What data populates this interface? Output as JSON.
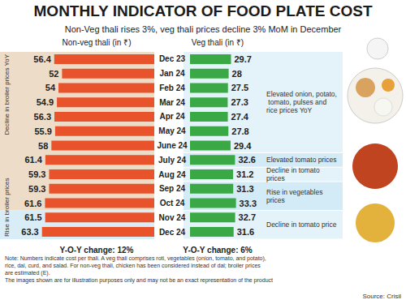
{
  "title": "MONTHLY INDICATOR OF FOOD PLATE COST",
  "subtitle": "Non-Veg thali rises 3%, veg thali prices decline 3% MoM in December",
  "note": [
    "Note: Numbers indicate cost per thali. A veg thali comprises roti, vegetables (onion, tomato, and potato), rice, dal, curd, and salad. For non-veg thali, chicken has been considered instead of dal; broiler prices are estimated (E).",
    "The images shown are for illustration purposes only and may not be an exact representation of the product"
  ],
  "source": "Source: Crisil",
  "chart_data": [
    {
      "type": "bar",
      "orientation": "horizontal",
      "title": "Non-veg thali (in ₹)",
      "categories": [
        "Dec 23",
        "Jan 24",
        "Feb 24",
        "Mar 24",
        "Apr 24",
        "May 24",
        "June 24",
        "July 24",
        "Aug 24",
        "Sep 24",
        "Oct 24",
        "Nov 24",
        "Dec 24"
      ],
      "values": [
        56.4,
        52,
        54,
        54.9,
        56.3,
        55.9,
        58,
        61.4,
        59.3,
        59.3,
        61.6,
        61.5,
        63.3
      ],
      "color": "#e8532b",
      "xlim": [
        0,
        65
      ],
      "data_labels": true,
      "tick_labels": "y",
      "grid": false,
      "footer": "Y-O-Y change: 12%",
      "annotations": [
        {
          "text": "Decline in broiler prices YoY",
          "from": "Dec 23",
          "to": "Oct 24"
        },
        {
          "text": "Rise in broiler prices",
          "from": "Nov 24",
          "to": "Dec 24"
        }
      ]
    },
    {
      "type": "bar",
      "orientation": "horizontal",
      "title": "Veg thali (in ₹)",
      "categories": [
        "Dec 23",
        "Jan 24",
        "Feb 24",
        "Mar 24",
        "Apr 24",
        "May 24",
        "June 24",
        "July 24",
        "Aug 24",
        "Sep 24",
        "Oct 24",
        "Nov 24",
        "Dec 24"
      ],
      "values": [
        29.7,
        28,
        27.5,
        27.3,
        27.4,
        27.8,
        29.4,
        32.6,
        31.2,
        31.3,
        33.3,
        32.7,
        31.6
      ],
      "color": "#3aa845",
      "xlim": [
        0,
        40
      ],
      "data_labels": true,
      "tick_labels": false,
      "grid": false,
      "footer": "Y-O-Y change: 6%",
      "annotations": [
        {
          "text": "Elevated onion, potato, tomato, pulses and rice prices YoY",
          "from": "Dec 23",
          "to": "June 24"
        },
        {
          "text": "Elevated tomato prices",
          "from": "July 24",
          "to": "July 24"
        },
        {
          "text": "Decline in tomato prices",
          "from": "Aug 24",
          "to": "Aug 24"
        },
        {
          "text": "Rise in vegetables prices",
          "from": "Sep 24",
          "to": "Oct 24"
        },
        {
          "text": "Decline in tomato price",
          "from": "Nov 24",
          "to": "Dec 24"
        }
      ]
    }
  ]
}
